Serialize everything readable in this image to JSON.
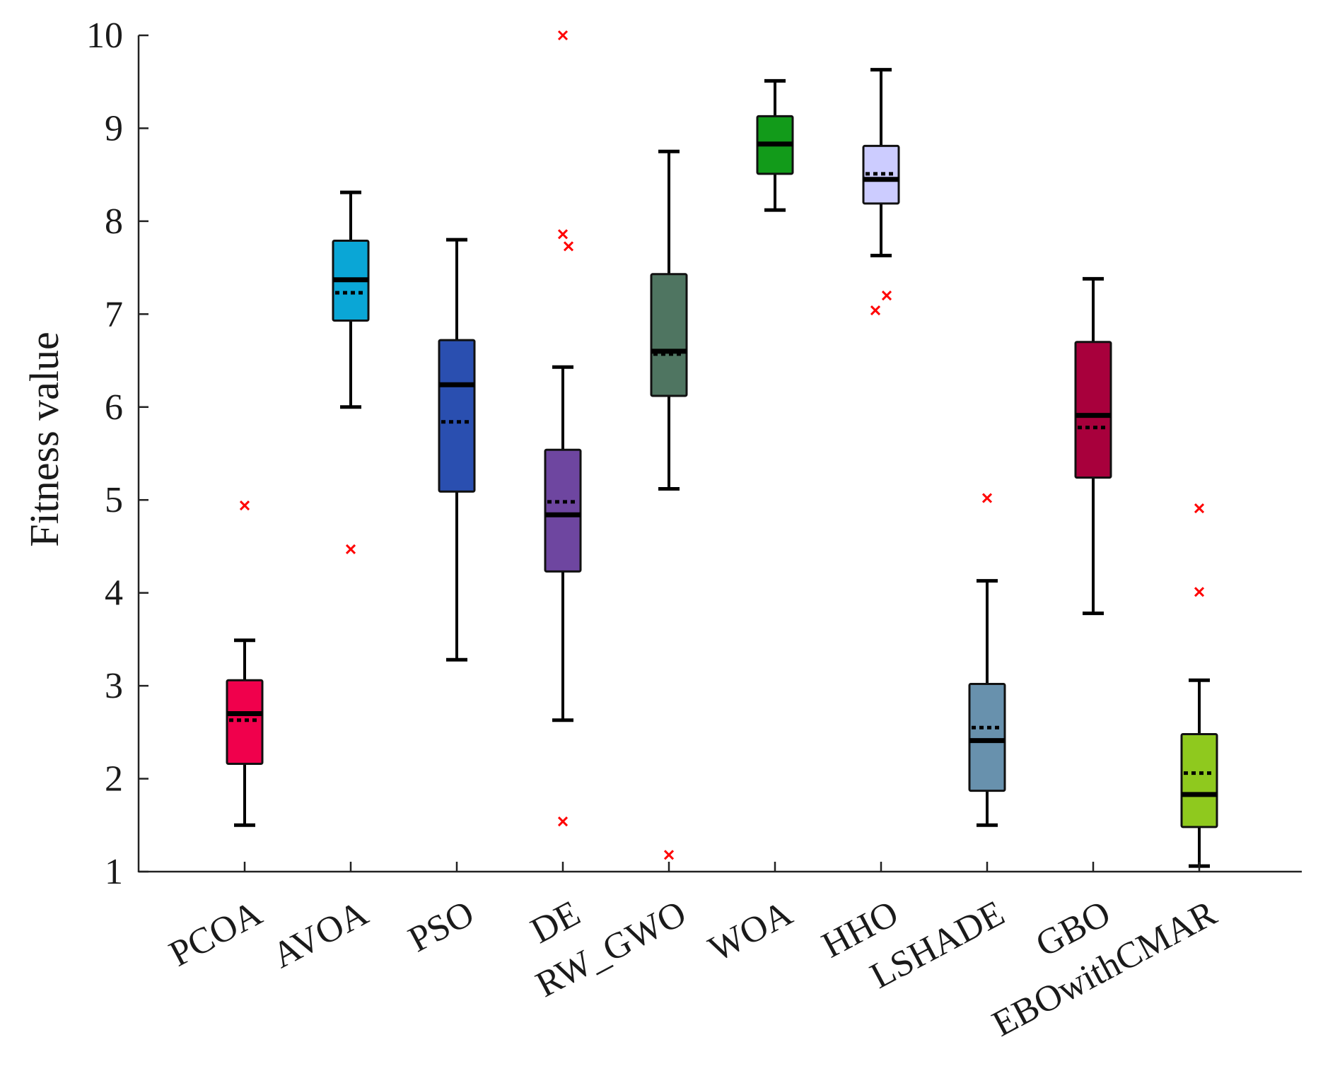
{
  "chart_data": {
    "type": "boxplot",
    "title": "",
    "xlabel": "",
    "ylabel": "Fitness value",
    "ylim": [
      1,
      10
    ],
    "yticks": [
      1,
      2,
      3,
      4,
      5,
      6,
      7,
      8,
      9,
      10
    ],
    "legend": "none",
    "grid": false,
    "categories": [
      "PCOA",
      "AVOA",
      "PSO",
      "DE",
      "RW_GWO",
      "WOA",
      "HHO",
      "LSHADE",
      "GBO",
      "EBOwithCMAR"
    ],
    "series": [
      {
        "name": "PCOA",
        "color": "#f0004c",
        "whisker_low": 1.5,
        "q1": 2.16,
        "median": 2.7,
        "mean": 2.63,
        "q3": 3.06,
        "whisker_high": 3.49,
        "outliers": [
          4.94
        ]
      },
      {
        "name": "AVOA",
        "color": "#0aa6d6",
        "whisker_low": 6.0,
        "q1": 6.93,
        "median": 7.37,
        "mean": 7.23,
        "q3": 7.79,
        "whisker_high": 8.31,
        "outliers": [
          4.47
        ]
      },
      {
        "name": "PSO",
        "color": "#2a4fb0",
        "whisker_low": 3.28,
        "q1": 5.09,
        "median": 6.24,
        "mean": 5.84,
        "q3": 6.72,
        "whisker_high": 7.8,
        "outliers": []
      },
      {
        "name": "DE",
        "color": "#6e46a0",
        "whisker_low": 2.63,
        "q1": 4.23,
        "median": 4.84,
        "mean": 4.98,
        "q3": 5.54,
        "whisker_high": 6.43,
        "outliers": [
          1.54,
          7.73,
          7.86,
          10.0
        ]
      },
      {
        "name": "RW_GWO",
        "color": "#4f7561",
        "whisker_low": 5.12,
        "q1": 6.12,
        "median": 6.6,
        "mean": 6.57,
        "q3": 7.43,
        "whisker_high": 8.75,
        "outliers": [
          1.18
        ]
      },
      {
        "name": "WOA",
        "color": "#129b1a",
        "whisker_low": 8.12,
        "q1": 8.51,
        "median": 8.83,
        "mean": 8.83,
        "q3": 9.13,
        "whisker_high": 9.51,
        "outliers": []
      },
      {
        "name": "HHO",
        "color": "#ccccff",
        "whisker_low": 7.63,
        "q1": 8.19,
        "median": 8.45,
        "mean": 8.51,
        "q3": 8.81,
        "whisker_high": 9.63,
        "outliers": [
          7.04,
          7.2
        ]
      },
      {
        "name": "LSHADE",
        "color": "#6891ad",
        "whisker_low": 1.5,
        "q1": 1.87,
        "median": 2.41,
        "mean": 2.55,
        "q3": 3.02,
        "whisker_high": 4.13,
        "outliers": [
          5.02
        ]
      },
      {
        "name": "GBO",
        "color": "#a8003c",
        "whisker_low": 3.78,
        "q1": 5.24,
        "median": 5.91,
        "mean": 5.78,
        "q3": 6.7,
        "whisker_high": 7.38,
        "outliers": []
      },
      {
        "name": "EBOwithCMAR",
        "color": "#8fc91e",
        "whisker_low": 1.06,
        "q1": 1.48,
        "median": 1.83,
        "mean": 2.06,
        "q3": 2.48,
        "whisker_high": 3.06,
        "outliers": [
          4.01,
          4.91
        ]
      }
    ]
  }
}
